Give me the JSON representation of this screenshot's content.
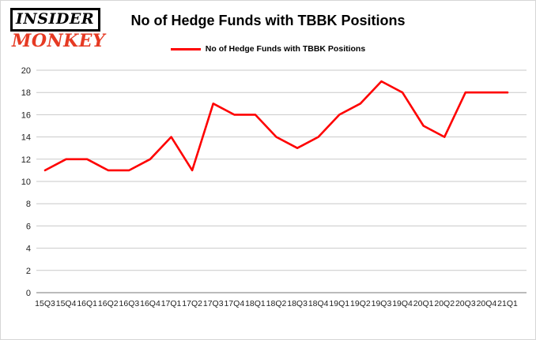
{
  "logo": {
    "line1": "INSIDER",
    "line2": "MONKEY"
  },
  "title": "No of Hedge Funds with TBBK Positions",
  "legend": {
    "label": "No of Hedge Funds with TBBK Positions"
  },
  "colors": {
    "line": "#fe0000",
    "logo_red": "#e63a23",
    "grid": "#c9c9c9",
    "axis": "#777777",
    "tick_text": "#222222"
  },
  "chart_data": {
    "type": "line",
    "title": "No of Hedge Funds with TBBK Positions",
    "categories": [
      "15Q3",
      "15Q4",
      "16Q1",
      "16Q2",
      "16Q3",
      "16Q4",
      "17Q1",
      "17Q2",
      "17Q3",
      "17Q4",
      "18Q1",
      "18Q2",
      "18Q3",
      "18Q4",
      "19Q1",
      "19Q2",
      "19Q3",
      "19Q4",
      "20Q1",
      "20Q2",
      "20Q3",
      "20Q4",
      "21Q1"
    ],
    "values": [
      11,
      12,
      12,
      11,
      11,
      12,
      14,
      11,
      17,
      16,
      16,
      14,
      13,
      14,
      16,
      17,
      19,
      18,
      15,
      14,
      18,
      18,
      18
    ],
    "xlabel": "",
    "ylabel": "",
    "ylim": [
      0,
      20
    ],
    "yticks": [
      0,
      2,
      4,
      6,
      8,
      10,
      12,
      14,
      16,
      18,
      20
    ],
    "grid": true,
    "legend_position": "top"
  }
}
